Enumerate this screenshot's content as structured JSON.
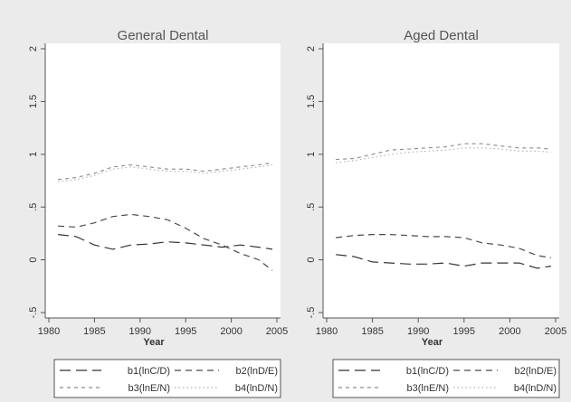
{
  "chart_data": [
    {
      "type": "line",
      "title": "General Dental",
      "xlabel": "Year",
      "ylabel": "",
      "xlim": [
        1980,
        2005
      ],
      "ylim": [
        -0.5,
        2
      ],
      "xticks": [
        "1980",
        "1985",
        "1990",
        "1995",
        "2000",
        "2005"
      ],
      "yticks": [
        "-.5",
        "0",
        ".5",
        "1",
        "1.5",
        "2"
      ],
      "grid": false,
      "legend_position": "bottom",
      "series": [
        {
          "name": "b1(lnC/D)",
          "style": "long-dash",
          "x": [
            1981,
            1983,
            1985,
            1987,
            1989,
            1991,
            1993,
            1995,
            1997,
            1999,
            2001,
            2003,
            2004.5
          ],
          "y": [
            0.24,
            0.22,
            0.14,
            0.1,
            0.14,
            0.15,
            0.17,
            0.16,
            0.14,
            0.12,
            0.14,
            0.12,
            0.1
          ]
        },
        {
          "name": "b2(lnD/E)",
          "style": "dash",
          "x": [
            1981,
            1983,
            1985,
            1987,
            1989,
            1991,
            1993,
            1995,
            1997,
            1999,
            2001,
            2003,
            2004.5
          ],
          "y": [
            0.32,
            0.31,
            0.35,
            0.41,
            0.43,
            0.41,
            0.38,
            0.3,
            0.2,
            0.14,
            0.06,
            0.0,
            -0.1
          ]
        },
        {
          "name": "b3(lnE/N)",
          "style": "short-dash",
          "x": [
            1981,
            1983,
            1985,
            1987,
            1989,
            1991,
            1993,
            1995,
            1997,
            1999,
            2001,
            2003,
            2004.5
          ],
          "y": [
            0.76,
            0.78,
            0.82,
            0.88,
            0.9,
            0.88,
            0.86,
            0.86,
            0.84,
            0.86,
            0.88,
            0.9,
            0.92
          ]
        },
        {
          "name": "b4(lnD/N)",
          "style": "dot",
          "x": [
            1981,
            1983,
            1985,
            1987,
            1989,
            1991,
            1993,
            1995,
            1997,
            1999,
            2001,
            2003,
            2004.5
          ],
          "y": [
            0.74,
            0.76,
            0.8,
            0.86,
            0.88,
            0.86,
            0.84,
            0.84,
            0.82,
            0.84,
            0.86,
            0.88,
            0.9
          ]
        }
      ]
    },
    {
      "type": "line",
      "title": "Aged Dental",
      "xlabel": "Year",
      "ylabel": "",
      "xlim": [
        1980,
        2005
      ],
      "ylim": [
        -0.5,
        2
      ],
      "xticks": [
        "1980",
        "1985",
        "1990",
        "1995",
        "2000",
        "2005"
      ],
      "yticks": [
        "-.5",
        "0",
        ".5",
        "1",
        "1.5",
        "2"
      ],
      "grid": false,
      "legend_position": "bottom",
      "series": [
        {
          "name": "b1(lnC/D)",
          "style": "long-dash",
          "x": [
            1981,
            1983,
            1985,
            1987,
            1989,
            1991,
            1993,
            1995,
            1997,
            1999,
            2001,
            2003,
            2004.5
          ],
          "y": [
            0.05,
            0.03,
            -0.02,
            -0.03,
            -0.04,
            -0.04,
            -0.03,
            -0.06,
            -0.03,
            -0.03,
            -0.03,
            -0.08,
            -0.06
          ]
        },
        {
          "name": "b2(lnD/E)",
          "style": "dash",
          "x": [
            1981,
            1983,
            1985,
            1987,
            1989,
            1991,
            1993,
            1995,
            1997,
            1999,
            2001,
            2003,
            2004.5
          ],
          "y": [
            0.21,
            0.23,
            0.24,
            0.24,
            0.23,
            0.22,
            0.22,
            0.21,
            0.16,
            0.14,
            0.11,
            0.04,
            0.02
          ]
        },
        {
          "name": "b3(lnE/N)",
          "style": "short-dash",
          "x": [
            1981,
            1983,
            1985,
            1987,
            1989,
            1991,
            1993,
            1995,
            1997,
            1999,
            2001,
            2003,
            2004.5
          ],
          "y": [
            0.95,
            0.96,
            1.0,
            1.04,
            1.05,
            1.06,
            1.07,
            1.1,
            1.1,
            1.08,
            1.06,
            1.06,
            1.05
          ]
        },
        {
          "name": "b4(lnD/N)",
          "style": "dot",
          "x": [
            1981,
            1983,
            1985,
            1987,
            1989,
            1991,
            1993,
            1995,
            1997,
            1999,
            2001,
            2003,
            2004.5
          ],
          "y": [
            0.92,
            0.94,
            0.97,
            1.0,
            1.02,
            1.03,
            1.04,
            1.06,
            1.06,
            1.05,
            1.03,
            1.03,
            1.02
          ]
        }
      ]
    }
  ],
  "colors": {
    "background": "#ebebeb",
    "plot_region": "#ffffff",
    "axis": "#555555",
    "text": "#333333",
    "series": [
      "#333333",
      "#4a4a4a",
      "#8a8a8a",
      "#b0b0b0"
    ]
  }
}
